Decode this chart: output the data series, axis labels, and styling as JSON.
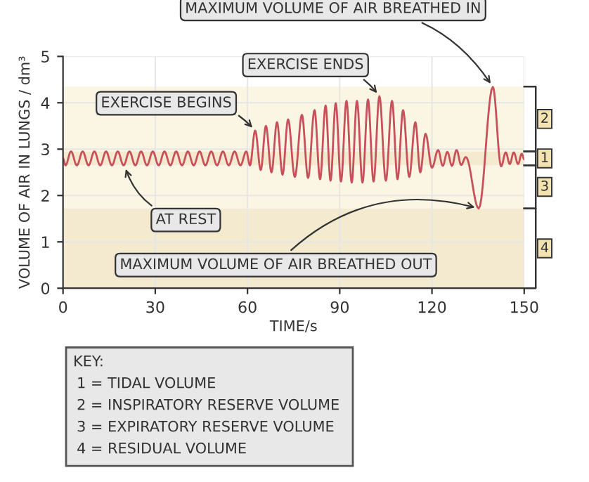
{
  "chart_data": {
    "type": "line",
    "xlabel": "TIME/s",
    "ylabel": "VOLUME OF AIR IN LUNGS / dm³",
    "xlim": [
      0,
      150
    ],
    "ylim": [
      0,
      5
    ],
    "xticks": [
      0,
      30,
      60,
      90,
      120,
      150
    ],
    "yticks": [
      0,
      1,
      2,
      3,
      4,
      5
    ],
    "grid": true,
    "marker": "none",
    "line_style": "solid",
    "series": [
      {
        "color": "#c8505a",
        "x": [
          0,
          0.8,
          2.6,
          4.5,
          6.4,
          8.3,
          10.2,
          12.1,
          14,
          15.9,
          17.8,
          19.7,
          21.6,
          23.5,
          25.4,
          27.3,
          29.2,
          31.1,
          33,
          34.9,
          36.8,
          38.7,
          40.6,
          42.5,
          44.4,
          46.3,
          48.2,
          50.1,
          52,
          53.9,
          55.8,
          57.7,
          59.6,
          60.8,
          62.5,
          64.3,
          66.0,
          67.8,
          69.6,
          71.4,
          73.2,
          75.4,
          77.7,
          79.7,
          81.8,
          83.6,
          85.4,
          87.0,
          88.7,
          90.4,
          92.2,
          93.9,
          95.6,
          97.4,
          99.2,
          101,
          102.9,
          105,
          107,
          108.8,
          110.6,
          112.6,
          114.6,
          116.2,
          117.9,
          120,
          122,
          123.5,
          125,
          126.5,
          128,
          129.5,
          131,
          135.2,
          139.8,
          142.5,
          144,
          145.3,
          146.6,
          148,
          149.2,
          150
        ],
        "values": [
          2.8,
          2.65,
          2.95,
          2.65,
          2.95,
          2.65,
          2.95,
          2.65,
          2.95,
          2.65,
          2.95,
          2.65,
          2.95,
          2.65,
          2.95,
          2.65,
          2.95,
          2.65,
          2.95,
          2.65,
          2.95,
          2.65,
          2.95,
          2.65,
          2.95,
          2.65,
          2.95,
          2.65,
          2.95,
          2.65,
          2.95,
          2.65,
          2.95,
          2.65,
          3.4,
          2.55,
          3.5,
          2.5,
          3.58,
          2.45,
          3.64,
          2.4,
          3.74,
          2.38,
          3.84,
          2.35,
          3.94,
          2.32,
          3.99,
          2.3,
          4.04,
          2.28,
          4.04,
          2.28,
          4.07,
          2.3,
          4.14,
          2.32,
          4.04,
          2.35,
          3.84,
          2.4,
          3.58,
          2.5,
          3.33,
          2.6,
          2.98,
          2.64,
          2.94,
          2.64,
          2.98,
          2.66,
          2.83,
          1.72,
          4.34,
          2.63,
          2.93,
          2.68,
          2.93,
          2.68,
          2.9,
          2.78
        ]
      }
    ],
    "bands": [
      {
        "axis": "y",
        "from": 2.95,
        "to": 4.35,
        "label": "2",
        "color": "#fbf5e4"
      },
      {
        "axis": "y",
        "from": 2.65,
        "to": 2.95,
        "label": "1",
        "color": "#f4ead0"
      },
      {
        "axis": "y",
        "from": 1.72,
        "to": 2.65,
        "label": "3",
        "color": "#fbf5e4"
      },
      {
        "axis": "y",
        "from": 0,
        "to": 1.72,
        "label": "4",
        "color": "#f4ead0"
      }
    ],
    "annotations": [
      {
        "text": "MAXIMUM VOLUME OF AIR BREATHED IN",
        "x": 139.8,
        "y": 4.34
      },
      {
        "text": "EXERCISE ENDS",
        "x": 102.9,
        "y": 4.14
      },
      {
        "text": "EXERCISE BEGINS",
        "x": 62.5,
        "y": 3.4
      },
      {
        "text": "AT REST",
        "x": 20,
        "y": 2.65
      },
      {
        "text": "MAXIMUM VOLUME OF AIR BREATHED OUT",
        "x": 135.2,
        "y": 1.72
      },
      "KEY:",
      "1 = TIDAL VOLUME",
      "2 = INSPIRATORY RESERVE VOLUME",
      "3 = EXPIRATORY RESERVE VOLUME",
      "4 = RESIDUAL VOLUME"
    ]
  }
}
